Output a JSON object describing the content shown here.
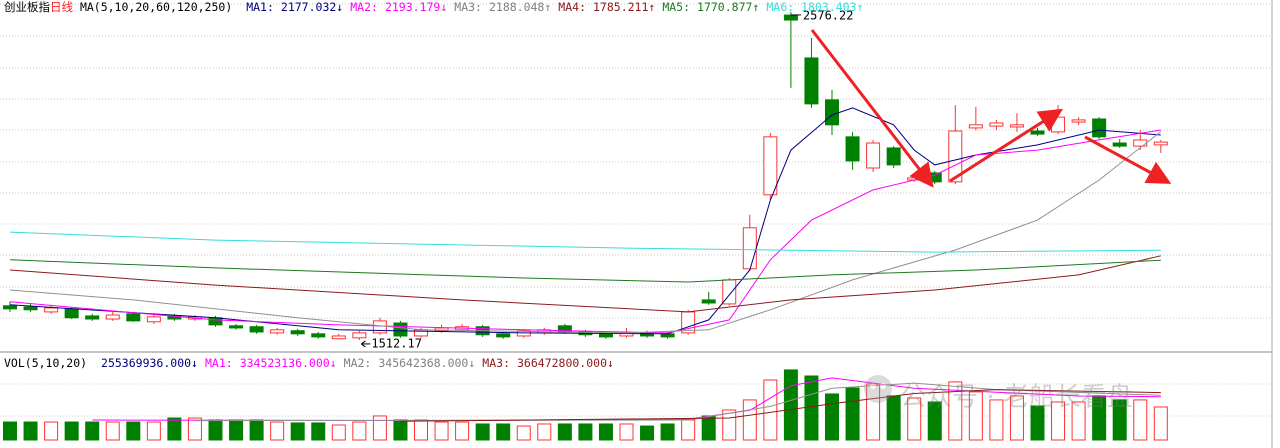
{
  "chart_data": [
    {
      "type": "candlestick",
      "symbol": "创业板指",
      "period": "日线",
      "indicator": "MA(5,10,20,60,120,250)",
      "up_color": "#ff3232",
      "down_color": "#008000",
      "ylim": [
        1473,
        2615
      ],
      "open": [
        1623,
        1619,
        1603,
        1613,
        1590,
        1580,
        1597,
        1571,
        1590,
        1580,
        1584,
        1558,
        1555,
        1535,
        1542,
        1532,
        1516,
        1519,
        1535,
        1567,
        1525,
        1542,
        1545,
        1555,
        1532,
        1525,
        1535,
        1558,
        1538,
        1532,
        1525,
        1535,
        1532,
        1535,
        1642,
        1629,
        1743,
        1983,
        2566,
        2427,
        2291,
        2171,
        2070,
        2135,
        2031,
        2054,
        2025,
        2200,
        2206,
        2203,
        2190,
        2187,
        2219,
        2229,
        2151,
        2141,
        2145
      ],
      "high": [
        1636,
        1629,
        1626,
        1619,
        1597,
        1603,
        1603,
        1597,
        1597,
        1593,
        1590,
        1564,
        1561,
        1551,
        1548,
        1538,
        1532,
        1542,
        1584,
        1574,
        1551,
        1561,
        1564,
        1561,
        1538,
        1548,
        1551,
        1564,
        1545,
        1538,
        1551,
        1542,
        1538,
        1610,
        1668,
        1713,
        1918,
        2184,
        2576.22,
        2492,
        2323,
        2187,
        2161,
        2141,
        2044,
        2060,
        2274,
        2268,
        2226,
        2248,
        2200,
        2274,
        2235,
        2235,
        2164,
        2193,
        2161
      ],
      "low": [
        1603,
        1603,
        1597,
        1580,
        1574,
        1574,
        1571,
        1564,
        1574,
        1574,
        1555,
        1545,
        1532,
        1529,
        1525,
        1516,
        1514,
        1512.17,
        1529,
        1519,
        1519,
        1535,
        1538,
        1522,
        1516,
        1519,
        1529,
        1532,
        1522,
        1516,
        1519,
        1519,
        1516,
        1529,
        1626,
        1623,
        1736,
        1966,
        2330,
        2265,
        2177,
        2064,
        2057,
        2070,
        2025,
        2018,
        2018,
        2193,
        2193,
        2187,
        2174,
        2180,
        2210,
        2164,
        2135,
        2128,
        2119
      ],
      "close": [
        1613,
        1610,
        1616,
        1584,
        1580,
        1593,
        1574,
        1587,
        1580,
        1587,
        1561,
        1551,
        1538,
        1545,
        1532,
        1522,
        1525,
        1535,
        1574,
        1525,
        1545,
        1551,
        1555,
        1529,
        1522,
        1542,
        1545,
        1538,
        1529,
        1522,
        1535,
        1525,
        1522,
        1603,
        1632,
        1707,
        1876,
        2171,
        2550,
        2278,
        2210,
        2093,
        2151,
        2080,
        2038,
        2025,
        2190,
        2210,
        2216,
        2210,
        2180,
        2235,
        2226,
        2171,
        2141,
        2161,
        2154
      ],
      "series": [
        {
          "color": "#000080",
          "x": [
            0,
            10,
            16,
            25,
            32,
            34,
            36,
            37,
            38,
            40,
            41,
            43,
            44,
            45,
            47,
            50,
            53,
            56
          ],
          "values": [
            1626,
            1584,
            1545,
            1535,
            1532,
            1577,
            1739,
            1966,
            2128,
            2242,
            2265,
            2210,
            2128,
            2080,
            2112,
            2145,
            2193,
            2177.032
          ]
        },
        {
          "color": "#ff00ff",
          "x": [
            0,
            10,
            16,
            25,
            32,
            35,
            36,
            37,
            39,
            42,
            45,
            47,
            50,
            53,
            56
          ],
          "values": [
            1636,
            1577,
            1561,
            1545,
            1535,
            1577,
            1674,
            1772,
            1901,
            1999,
            2047,
            2112,
            2128,
            2161,
            2193.179
          ]
        },
        {
          "color": "#909090",
          "x": [
            0,
            6,
            14,
            20,
            30,
            34,
            37,
            41,
            46,
            50,
            53,
            56
          ],
          "values": [
            1674,
            1642,
            1584,
            1545,
            1535,
            1545,
            1610,
            1707,
            1804,
            1901,
            2031,
            2188.048
          ]
        },
        {
          "color": "#8b1a1a",
          "x": [
            0,
            10,
            22,
            33,
            38,
            45,
            52,
            56
          ],
          "values": [
            1739,
            1690,
            1642,
            1603,
            1642,
            1674,
            1723,
            1785.211
          ]
        },
        {
          "color": "#1f7a1f",
          "x": [
            0,
            10,
            25,
            33,
            40,
            47,
            56
          ],
          "values": [
            1772,
            1746,
            1713,
            1700,
            1723,
            1739,
            1770.877
          ]
        },
        {
          "color": "#33dddd",
          "x": [
            0,
            10,
            30,
            45,
            56
          ],
          "values": [
            1862,
            1836,
            1810,
            1797,
            1803.403
          ]
        }
      ],
      "legend": [
        {
          "name": "MA1:",
          "value": 2177.032,
          "trend": "↓",
          "color": "#000080"
        },
        {
          "name": "MA2:",
          "value": 2193.179,
          "trend": "↓",
          "color": "#ff00ff"
        },
        {
          "name": "MA3:",
          "value": 2188.048,
          "trend": "↑",
          "color": "#808080"
        },
        {
          "name": "MA4:",
          "value": 1785.211,
          "trend": "↑",
          "color": "#8b1a1a"
        },
        {
          "name": "MA5:",
          "value": 1770.877,
          "trend": "↑",
          "color": "#1f7a1f"
        },
        {
          "name": "MA6:",
          "value": 1803.403,
          "trend": "↑",
          "color": "#33dddd"
        }
      ]
    },
    {
      "type": "bar",
      "indicator": "VOL(5,10,20)",
      "ylim": [
        0,
        611000000
      ],
      "values": [
        139000000,
        139000000,
        139000000,
        139000000,
        139000000,
        139000000,
        139000000,
        139000000,
        170000000,
        170000000,
        155000000,
        155000000,
        155000000,
        139000000,
        132000000,
        132000000,
        116000000,
        139000000,
        186000000,
        155000000,
        155000000,
        139000000,
        139000000,
        124000000,
        124000000,
        108000000,
        124000000,
        124000000,
        124000000,
        124000000,
        124000000,
        108000000,
        124000000,
        155000000,
        186000000,
        232000000,
        310000000,
        464000000,
        542000000,
        495000000,
        356000000,
        402000000,
        433000000,
        341000000,
        325000000,
        294000000,
        449000000,
        372000000,
        310000000,
        341000000,
        263000000,
        294000000,
        294000000,
        341000000,
        310000000,
        310000000,
        255369936
      ],
      "series": [
        {
          "color": "#ff00ff",
          "x": [
            4,
            20,
            33,
            36,
            38,
            40,
            44,
            48,
            52,
            56
          ],
          "values": [
            155000000,
            150000000,
            160000000,
            230000000,
            420000000,
            480000000,
            400000000,
            370000000,
            340000000,
            334523136
          ]
        },
        {
          "color": "#909090",
          "x": [
            9,
            33,
            37,
            40,
            44,
            48,
            56
          ],
          "values": [
            150000000,
            155000000,
            260000000,
            400000000,
            440000000,
            390000000,
            345642368
          ]
        },
        {
          "color": "#8b1a1a",
          "x": [
            19,
            35,
            40,
            44,
            48,
            56
          ],
          "values": [
            145000000,
            170000000,
            280000000,
            360000000,
            390000000,
            366472800
          ]
        }
      ],
      "legend": [
        {
          "value": {
            "value": 255369936,
            "label": "255369936.000"
          },
          "trend": "↓",
          "color": "#000080"
        },
        {
          "name": "MA1:",
          "value": {
            "value": 334523136,
            "label": "334523136.000"
          },
          "trend": "↓",
          "color": "#ff00ff"
        },
        {
          "name": "MA2:",
          "value": {
            "value": 345642368,
            "label": "345642368.000"
          },
          "trend": "↓",
          "color": "#808080"
        },
        {
          "name": "MA3:",
          "value": {
            "value": 366472800,
            "label": "366472800.000"
          },
          "trend": "↓",
          "color": "#8b1a1a"
        }
      ]
    }
  ],
  "watermark": "公众号 · 老船长看盘"
}
